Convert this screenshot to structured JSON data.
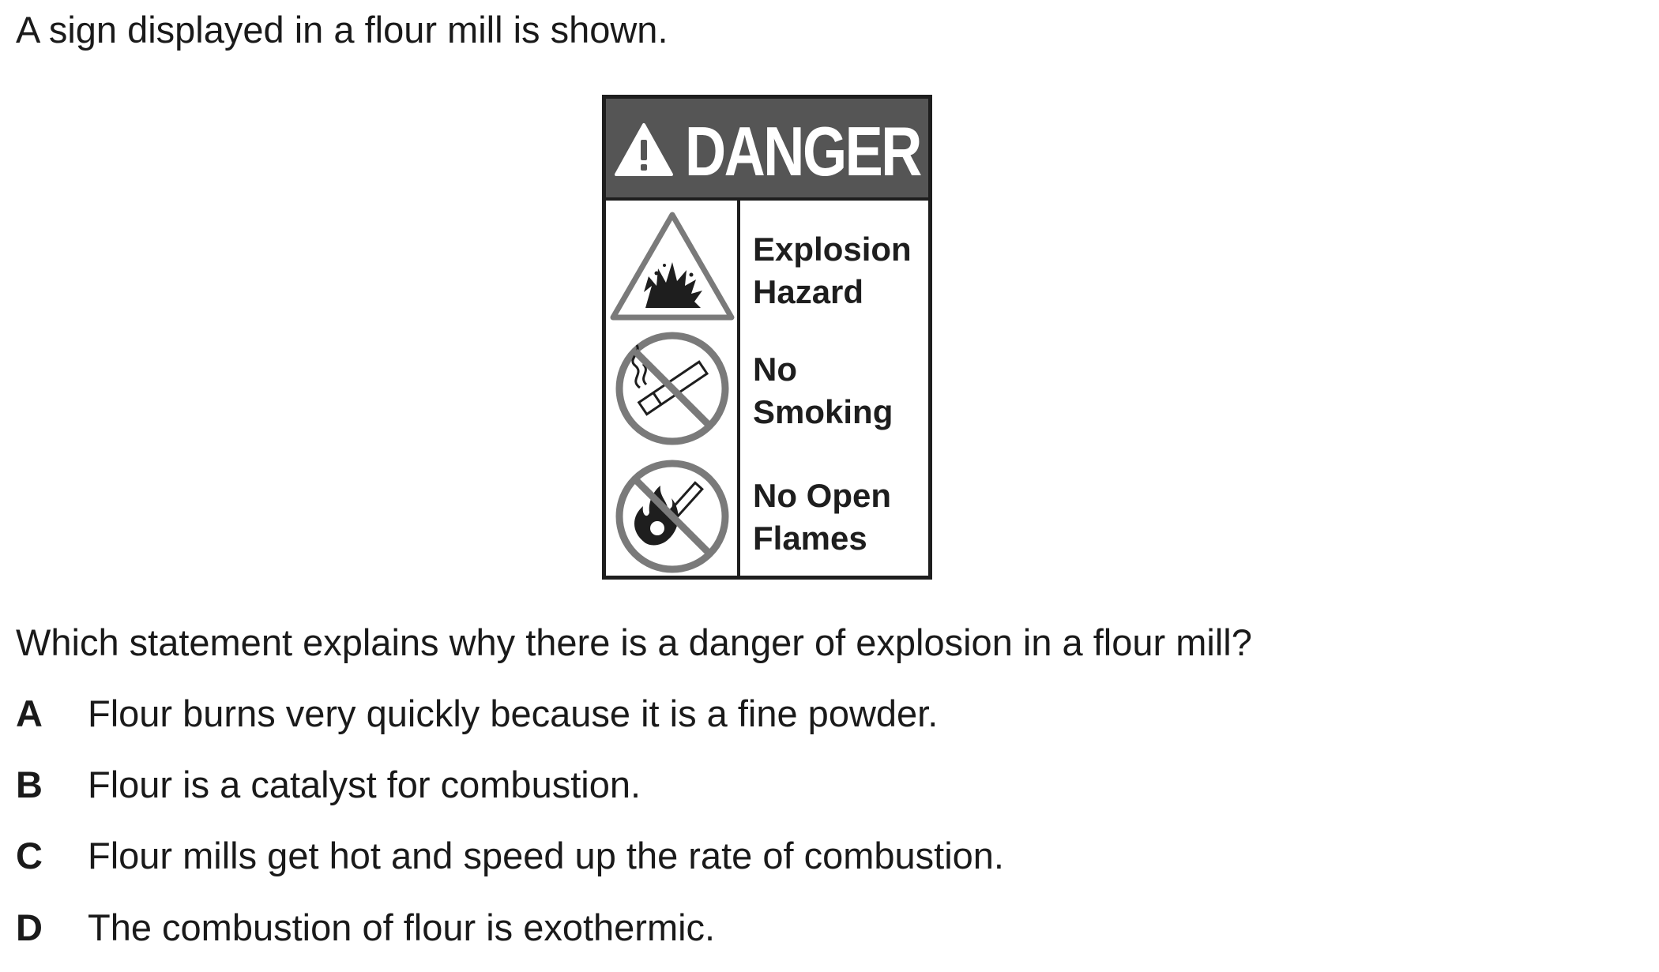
{
  "intro": "A sign displayed in a flour mill is shown.",
  "sign": {
    "title": "DANGER",
    "colors": {
      "header": "#555555",
      "border": "#1e1e1e",
      "icon_gray": "#7a7a7a",
      "icon_dark": "#1e1e1e"
    },
    "rows": [
      {
        "icon": "explosion-warning-icon",
        "label": "Explosion\nHazard"
      },
      {
        "icon": "no-smoking-icon",
        "label": "No\nSmoking"
      },
      {
        "icon": "no-open-flames-icon",
        "label": "No Open\nFlames"
      }
    ]
  },
  "question": "Which statement explains why there is a danger of explosion in a flour mill?",
  "options": [
    {
      "letter": "A",
      "text": "Flour burns very quickly because it is a fine powder."
    },
    {
      "letter": "B",
      "text": "Flour is a catalyst for combustion."
    },
    {
      "letter": "C",
      "text": "Flour mills get hot and speed up the rate of combustion."
    },
    {
      "letter": "D",
      "text": "The combustion of flour is exothermic."
    }
  ]
}
